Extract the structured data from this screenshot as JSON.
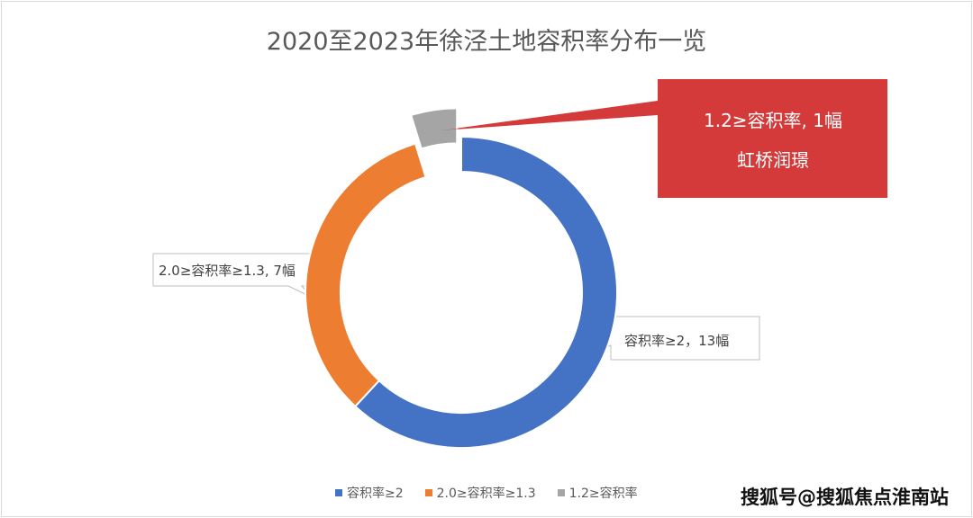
{
  "chart_data": {
    "type": "pie",
    "variant": "donut",
    "title": "2020至2023年徐泾土地容积率分布一览",
    "categories": [
      "容积率≥2",
      "2.0≥容积率≥1.3",
      "1.2≥容积率"
    ],
    "values": [
      13,
      7,
      1
    ],
    "colors": [
      "#4472C4",
      "#ED7D31",
      "#A5A5A5"
    ],
    "data_labels": [
      "容积率≥2，13幅",
      "2.0≥容积率≥1.3, 7幅",
      "1.2≥容积率, 1幅"
    ],
    "exploded": [
      false,
      false,
      true
    ],
    "annotation": {
      "line1": "1.2≥容积率, 1幅",
      "line2": "虹桥润璟",
      "color": "#D43A3A"
    },
    "legend_position": "bottom"
  },
  "watermark": "搜狐号@搜狐焦点淮南站"
}
